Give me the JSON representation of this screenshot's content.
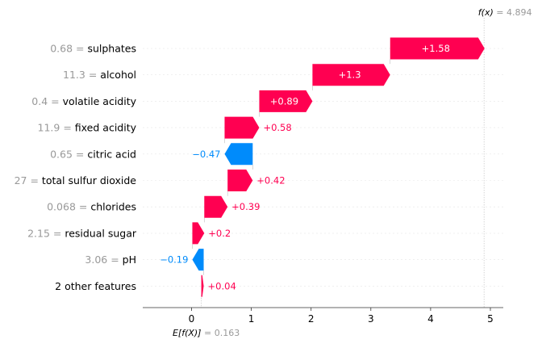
{
  "chart_data": {
    "type": "waterfall",
    "base_value": 0.163,
    "output_value": 4.894,
    "base_label": "E[f(X)]",
    "base_value_text": "= 0.163",
    "output_label": "f(x)",
    "output_value_text": "= 4.894",
    "xlim": [
      -0.8,
      5.25
    ],
    "xticks": [
      0,
      1,
      2,
      3,
      4,
      5
    ],
    "grid": false,
    "colors": {
      "positive": "#ff0051",
      "negative": "#008bfb"
    },
    "features": [
      {
        "value_text": "0.68 =",
        "name": "sulphates",
        "contribution": 1.58,
        "label": "+1.58"
      },
      {
        "value_text": "11.3 =",
        "name": "alcohol",
        "contribution": 1.3,
        "label": "+1.3"
      },
      {
        "value_text": "0.4 =",
        "name": "volatile acidity",
        "contribution": 0.89,
        "label": "+0.89"
      },
      {
        "value_text": "11.9 =",
        "name": "fixed acidity",
        "contribution": 0.58,
        "label": "+0.58"
      },
      {
        "value_text": "0.65 =",
        "name": "citric acid",
        "contribution": -0.47,
        "label": "−0.47"
      },
      {
        "value_text": "27 =",
        "name": "total sulfur dioxide",
        "contribution": 0.42,
        "label": "+0.42"
      },
      {
        "value_text": "0.068 =",
        "name": "chlorides",
        "contribution": 0.39,
        "label": "+0.39"
      },
      {
        "value_text": "2.15 =",
        "name": "residual sugar",
        "contribution": 0.2,
        "label": "+0.2"
      },
      {
        "value_text": "3.06 =",
        "name": "pH",
        "contribution": -0.19,
        "label": "−0.19"
      },
      {
        "value_text": "",
        "name": "2 other features",
        "contribution": 0.04,
        "label": "+0.04"
      }
    ]
  }
}
